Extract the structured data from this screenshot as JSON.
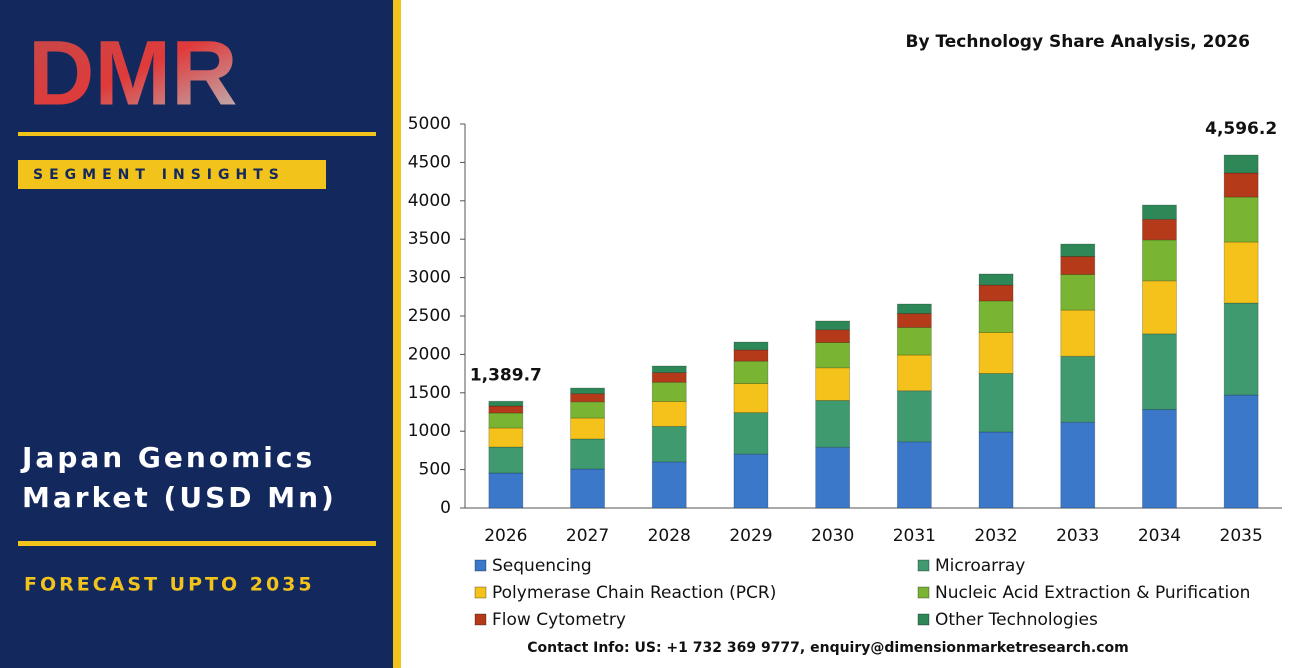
{
  "panel": {
    "logo": "DMR",
    "badge": "SEGMENT INSIGHTS",
    "heading_lines": [
      "Japan Genomics",
      "Market (USD Mn)"
    ],
    "forecast": "FORECAST UPTO 2035"
  },
  "contact": "Contact Info: US: +1 732 369 9777, enquiry@dimensionmarketresearch.com",
  "chart_data": {
    "type": "stacked-bar",
    "subtitle": "By Technology Share Analysis, 2026",
    "categories": [
      "2026",
      "2027",
      "2028",
      "2029",
      "2030",
      "2031",
      "2032",
      "2033",
      "2034",
      "2035"
    ],
    "series": [
      {
        "name": "Sequencing",
        "color": "#3b78c9",
        "values": [
          456,
          508,
          601,
          702,
          791,
          863,
          990,
          1117,
          1282,
          1471
        ]
      },
      {
        "name": "Microarray",
        "color": "#3f9a70",
        "values": [
          338,
          391,
          462,
          540,
          609,
          664,
          762,
          859,
          986,
          1198
        ]
      },
      {
        "name": "Polymerase Chain Reaction (PCR)",
        "color": "#f4c21a",
        "values": [
          248,
          273,
          324,
          378,
          426,
          465,
          533,
          601,
          690,
          794
        ]
      },
      {
        "name": "Nucleic Acid Extraction & Purification",
        "color": "#7ab433",
        "values": [
          195,
          211,
          250,
          292,
          329,
          359,
          411,
          464,
          533,
          586
        ]
      },
      {
        "name": "Flow Cytometry",
        "color": "#b43a1a",
        "values": [
          91,
          106,
          126,
          147,
          166,
          181,
          207,
          234,
          268,
          313
        ]
      },
      {
        "name": "Other Technologies",
        "color": "#2e8757",
        "values": [
          61.7,
          73,
          86,
          102,
          114,
          124,
          144,
          162,
          186,
          234.2
        ]
      }
    ],
    "annotations": [
      {
        "category": "2026",
        "value": 1389.7,
        "label": "1,389.7"
      },
      {
        "category": "2035",
        "value": 4596.2,
        "label": "4,596.2"
      }
    ],
    "ylim": [
      0,
      5000
    ],
    "yticks": [
      0,
      500,
      1000,
      1500,
      2000,
      2500,
      3000,
      3500,
      4000,
      4500,
      5000
    ],
    "legend": "bottom"
  }
}
